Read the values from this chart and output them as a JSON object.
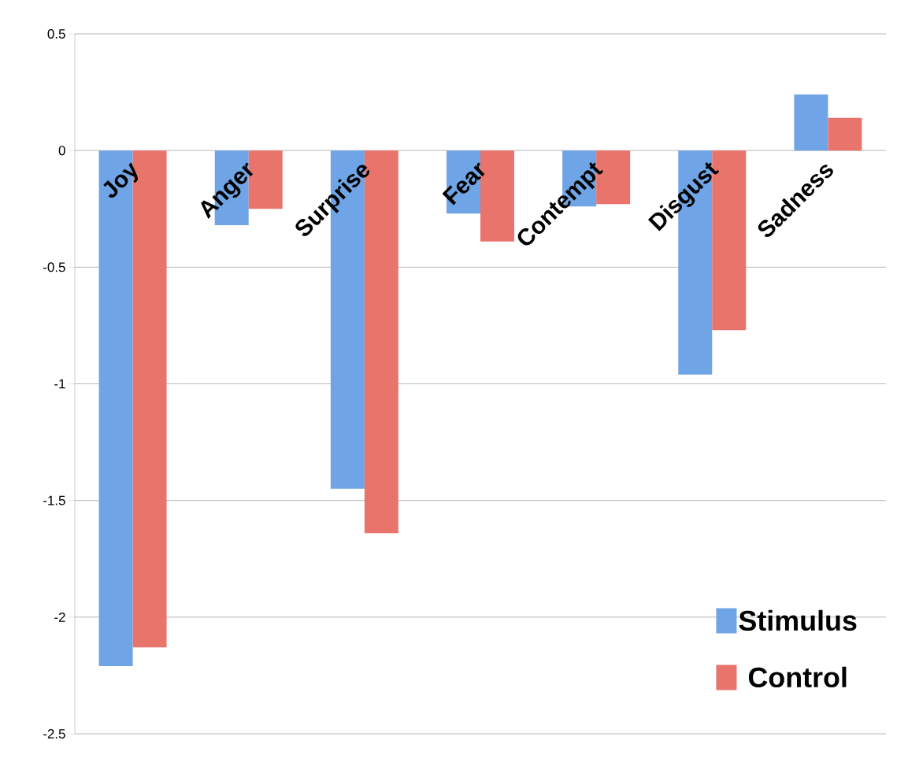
{
  "chart_data": {
    "type": "bar",
    "categories": [
      "Joy",
      "Anger",
      "Surprise",
      "Fear",
      "Contempt",
      "Disgust",
      "Sadness"
    ],
    "series": [
      {
        "name": "Stimulus",
        "color": "#6fa5e6",
        "values": [
          -2.21,
          -0.32,
          -1.45,
          -0.27,
          -0.24,
          -0.96,
          0.24
        ]
      },
      {
        "name": "Control",
        "color": "#e8746c",
        "values": [
          -2.13,
          -0.25,
          -1.64,
          -0.39,
          -0.23,
          -0.77,
          0.14
        ]
      }
    ],
    "ylim": [
      -2.5,
      0.5
    ],
    "yticks": [
      0.5,
      0,
      -0.5,
      -1,
      -1.5,
      -2,
      -2.5
    ],
    "grid": "y",
    "legend": "bottom right"
  }
}
